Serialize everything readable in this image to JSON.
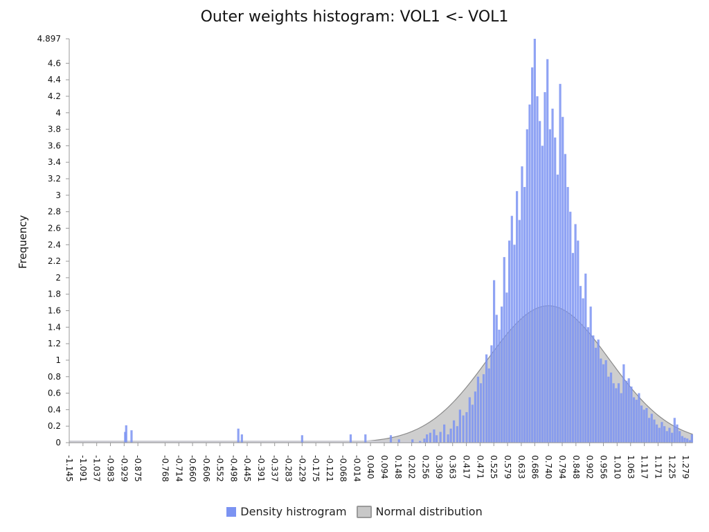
{
  "chart_data": {
    "type": "bar",
    "title": "Outer weights histogram: VOL1 <- VOL1",
    "xlabel": "",
    "ylabel": "Frequency",
    "ylim": [
      0,
      4.897
    ],
    "xlim": [
      -1.145,
      1.306
    ],
    "y_ticks": [
      "0",
      "0.2",
      "0.4",
      "0.6",
      "0.8",
      "1",
      "1.2",
      "1.4",
      "1.6",
      "1.8",
      "2",
      "2.2",
      "2.4",
      "2.6",
      "2.8",
      "3",
      "3.2",
      "3.4",
      "3.6",
      "3.8",
      "4",
      "4.2",
      "4.4",
      "4.6",
      "4.897"
    ],
    "x_ticks": [
      "-1.145",
      "-1.091",
      "-1.037",
      "-0.983",
      "-0.929",
      "-0.875",
      "-0.768",
      "-0.714",
      "-0.660",
      "-0.606",
      "-0.552",
      "-0.498",
      "-0.445",
      "-0.391",
      "-0.337",
      "-0.283",
      "-0.229",
      "-0.175",
      "-0.121",
      "-0.068",
      "-0.014",
      "0.040",
      "0.094",
      "0.148",
      "0.202",
      "0.256",
      "0.309",
      "0.363",
      "0.417",
      "0.471",
      "0.525",
      "0.579",
      "0.633",
      "0.686",
      "0.740",
      "0.794",
      "0.848",
      "0.902",
      "0.956",
      "1.010",
      "1.063",
      "1.117",
      "1.171",
      "1.225",
      "1.279"
    ],
    "legend": [
      "Density histrogram",
      "Normal distribution"
    ],
    "legend_position": "bottom-center",
    "grid": false,
    "colors": {
      "histogram": "#7b93f2",
      "normal_fill": "#bdbdbd",
      "normal_stroke": "#8a8a8a"
    },
    "series": [
      {
        "name": "Density histrogram",
        "type": "bar",
        "points": [
          [
            -0.925,
            0.13
          ],
          [
            -0.921,
            0.21
          ],
          [
            -0.9,
            0.15
          ],
          [
            -0.48,
            0.17
          ],
          [
            -0.466,
            0.1
          ],
          [
            -0.229,
            0.09
          ],
          [
            -0.038,
            0.1
          ],
          [
            0.02,
            0.1
          ],
          [
            0.12,
            0.09
          ],
          [
            0.152,
            0.04
          ],
          [
            0.205,
            0.04
          ],
          [
            0.235,
            0.02
          ],
          [
            0.252,
            0.05
          ],
          [
            0.262,
            0.1
          ],
          [
            0.275,
            0.12
          ],
          [
            0.29,
            0.16
          ],
          [
            0.3,
            0.09
          ],
          [
            0.315,
            0.13
          ],
          [
            0.33,
            0.22
          ],
          [
            0.345,
            0.1
          ],
          [
            0.356,
            0.17
          ],
          [
            0.368,
            0.27
          ],
          [
            0.381,
            0.2
          ],
          [
            0.392,
            0.4
          ],
          [
            0.405,
            0.33
          ],
          [
            0.418,
            0.37
          ],
          [
            0.43,
            0.55
          ],
          [
            0.441,
            0.46
          ],
          [
            0.452,
            0.62
          ],
          [
            0.463,
            0.8
          ],
          [
            0.474,
            0.72
          ],
          [
            0.485,
            0.83
          ],
          [
            0.496,
            1.07
          ],
          [
            0.506,
            0.9
          ],
          [
            0.516,
            1.18
          ],
          [
            0.526,
            1.97
          ],
          [
            0.536,
            1.55
          ],
          [
            0.546,
            1.37
          ],
          [
            0.556,
            1.65
          ],
          [
            0.566,
            2.25
          ],
          [
            0.576,
            1.82
          ],
          [
            0.586,
            2.45
          ],
          [
            0.596,
            2.75
          ],
          [
            0.606,
            2.4
          ],
          [
            0.616,
            3.05
          ],
          [
            0.626,
            2.7
          ],
          [
            0.636,
            3.35
          ],
          [
            0.646,
            3.1
          ],
          [
            0.656,
            3.8
          ],
          [
            0.666,
            4.1
          ],
          [
            0.676,
            4.55
          ],
          [
            0.686,
            4.897
          ],
          [
            0.696,
            4.2
          ],
          [
            0.706,
            3.9
          ],
          [
            0.716,
            3.6
          ],
          [
            0.726,
            4.25
          ],
          [
            0.736,
            4.65
          ],
          [
            0.746,
            3.8
          ],
          [
            0.756,
            4.05
          ],
          [
            0.766,
            3.7
          ],
          [
            0.776,
            3.25
          ],
          [
            0.786,
            4.35
          ],
          [
            0.796,
            3.95
          ],
          [
            0.806,
            3.5
          ],
          [
            0.816,
            3.1
          ],
          [
            0.826,
            2.8
          ],
          [
            0.836,
            2.3
          ],
          [
            0.846,
            2.65
          ],
          [
            0.856,
            2.45
          ],
          [
            0.866,
            1.9
          ],
          [
            0.876,
            1.75
          ],
          [
            0.886,
            2.05
          ],
          [
            0.896,
            1.4
          ],
          [
            0.906,
            1.65
          ],
          [
            0.916,
            1.3
          ],
          [
            0.926,
            1.15
          ],
          [
            0.936,
            1.25
          ],
          [
            0.946,
            1.02
          ],
          [
            0.956,
            0.95
          ],
          [
            0.966,
            1.0
          ],
          [
            0.976,
            0.8
          ],
          [
            0.986,
            0.85
          ],
          [
            0.996,
            0.72
          ],
          [
            1.006,
            0.66
          ],
          [
            1.016,
            0.72
          ],
          [
            1.026,
            0.6
          ],
          [
            1.036,
            0.95
          ],
          [
            1.046,
            0.75
          ],
          [
            1.056,
            0.78
          ],
          [
            1.066,
            0.68
          ],
          [
            1.076,
            0.55
          ],
          [
            1.086,
            0.52
          ],
          [
            1.096,
            0.6
          ],
          [
            1.106,
            0.45
          ],
          [
            1.116,
            0.4
          ],
          [
            1.126,
            0.42
          ],
          [
            1.136,
            0.3
          ],
          [
            1.146,
            0.35
          ],
          [
            1.156,
            0.28
          ],
          [
            1.166,
            0.22
          ],
          [
            1.176,
            0.18
          ],
          [
            1.186,
            0.25
          ],
          [
            1.196,
            0.2
          ],
          [
            1.206,
            0.14
          ],
          [
            1.216,
            0.18
          ],
          [
            1.226,
            0.12
          ],
          [
            1.236,
            0.3
          ],
          [
            1.246,
            0.22
          ],
          [
            1.256,
            0.14
          ],
          [
            1.266,
            0.08
          ],
          [
            1.276,
            0.06
          ],
          [
            1.286,
            0.05
          ],
          [
            1.296,
            0.03
          ],
          [
            1.304,
            0.1
          ]
        ]
      },
      {
        "name": "Normal distribution",
        "type": "area",
        "mean": 0.74,
        "sd": 0.24,
        "peak": 1.66
      }
    ]
  }
}
